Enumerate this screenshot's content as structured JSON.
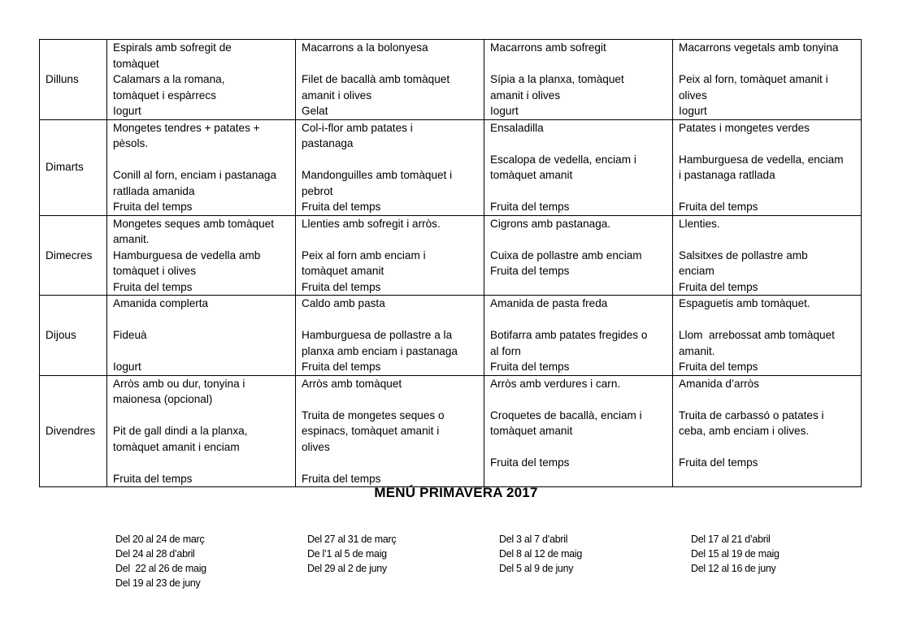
{
  "title": "MENÚ PRIMAVERA 2017",
  "rows": [
    {
      "day": "Dilluns",
      "cells": [
        [
          "Espirals amb sofregit de",
          "tomàquet",
          "Calamars a la romana,",
          "tomàquet i espàrrecs",
          "Iogurt"
        ],
        [
          "Macarrons a la bolonyesa",
          "",
          "Filet de bacallà amb tomàquet",
          "amanit i olives",
          "Gelat"
        ],
        [
          "Macarrons amb sofregit",
          "",
          "Sípia a la planxa, tomàquet",
          "amanit i olives",
          "Iogurt"
        ],
        [
          "Macarrons vegetals amb tonyina",
          "",
          "Peix al forn, tomàquet amanit i",
          "olives",
          "Iogurt"
        ]
      ]
    },
    {
      "day": "Dimarts",
      "cells": [
        [
          "Mongetes tendres + patates +",
          "pèsols.",
          "",
          "Conill al forn, enciam i pastanaga",
          "ratllada amanida",
          "Fruita del temps"
        ],
        [
          "Col-i-flor amb patates i",
          "pastanaga",
          "",
          "Mandonguilles amb tomàquet i",
          "pebrot",
          "Fruita del temps"
        ],
        [
          "Ensaladilla",
          "",
          "Escalopa de vedella, enciam i",
          "tomàquet amanit",
          "",
          "Fruita del temps"
        ],
        [
          "Patates i mongetes verdes",
          "",
          "Hamburguesa de vedella, enciam",
          "i pastanaga ratllada",
          "",
          "Fruita del temps"
        ]
      ]
    },
    {
      "day": "Dimecres",
      "cells": [
        [
          "Mongetes seques amb tomàquet",
          "amanit.",
          "Hamburguesa de vedella amb",
          "tomàquet i olives",
          "Fruita del temps"
        ],
        [
          "Llenties amb sofregit i arròs.",
          "",
          "Peix al forn amb enciam i",
          "tomàquet amanit",
          "Fruita del temps"
        ],
        [
          "Cigrons amb pastanaga.",
          "",
          "Cuixa de pollastre amb enciam",
          "Fruita del temps",
          ""
        ],
        [
          "Llenties.",
          "",
          "Salsitxes de pollastre amb",
          "enciam",
          "Fruita del temps"
        ]
      ]
    },
    {
      "day": "Dijous",
      "cells": [
        [
          "Amanida complerta",
          "",
          "Fideuà",
          "",
          "Iogurt"
        ],
        [
          "Caldo amb pasta",
          "",
          "Hamburguesa de pollastre a la",
          "planxa amb enciam i pastanaga",
          "Fruita del temps"
        ],
        [
          "Amanida de pasta freda",
          "",
          "Botifarra amb patates fregides o",
          "al forn",
          "Fruita del temps"
        ],
        [
          "Espaguetis amb tomàquet.",
          "",
          "Llom  arrebossat amb tomàquet",
          "amanit.",
          "Fruita del temps"
        ]
      ]
    },
    {
      "day": "Divendres",
      "cells": [
        [
          "Arròs amb ou dur, tonyina i",
          "maionesa (opcional)",
          "",
          "Pit de gall dindi a la planxa,",
          "tomàquet amanit i enciam",
          "",
          "Fruita del temps"
        ],
        [
          "Arròs amb tomàquet",
          "",
          "Truita de mongetes seques o",
          "espinacs, tomàquet amanit i",
          "olives",
          "",
          "Fruita del temps"
        ],
        [
          "Arròs amb verdures i carn.",
          "",
          "Croquetes de bacallà, enciam i",
          "tomàquet amanit",
          "",
          "Fruita del temps",
          ""
        ],
        [
          "Amanida d’arròs",
          "",
          "Truita de carbassó o patates i",
          "ceba, amb enciam i olives.",
          "",
          "Fruita del temps",
          ""
        ]
      ]
    }
  ],
  "date_columns": [
    [
      "Del 20 al 24 de març",
      "Del 24 al 28 d’abril",
      "Del  22 al 26 de maig",
      "Del 19 al 23 de juny"
    ],
    [
      "Del 27 al 31 de març",
      "De l’1 al 5 de maig",
      "Del 29 al 2 de juny"
    ],
    [
      "Del 3 al 7 d’abril",
      "Del 8 al 12 de maig",
      "Del 5 al 9 de juny"
    ],
    [
      "Del 17 al 21 d’abril",
      "Del 15 al 19 de maig",
      "Del 12 al 16 de juny"
    ]
  ]
}
